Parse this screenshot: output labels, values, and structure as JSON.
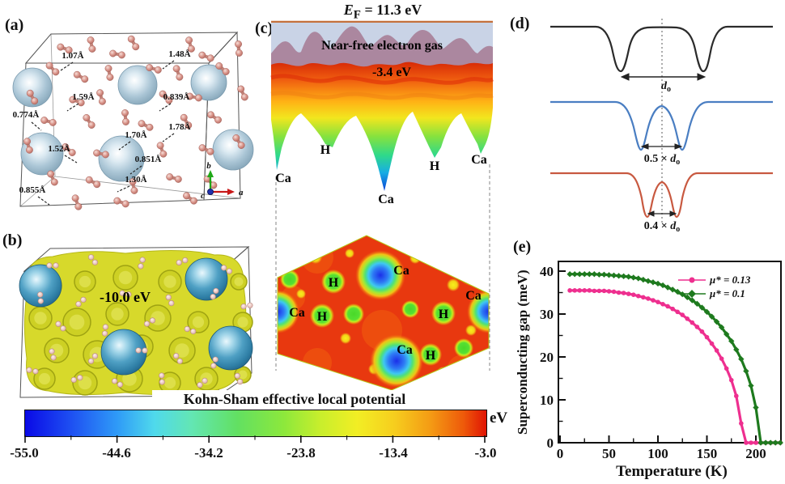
{
  "panels": {
    "a": "(a)",
    "b": "(b)",
    "c": "(c)",
    "d": "(d)",
    "e": "(e)"
  },
  "panel_a": {
    "bond_labels": [
      "1.07Å",
      "1.48Å",
      "1.59Å",
      "0.839Å",
      "0.774Å",
      "1.78Å",
      "1.52Å",
      "1.70Å",
      "0.851Å",
      "1.30Å",
      "0.855Å"
    ],
    "axis_a": "a",
    "axis_b": "b",
    "axis_c": "c"
  },
  "panel_b": {
    "isosurface_label": "-10.0 eV"
  },
  "panel_c": {
    "fermi_symbol": "E",
    "fermi_sub": "F",
    "fermi_value": " = 11.3 eV",
    "nfe_label": "Near-free electron gas",
    "level_label": "-3.4 eV",
    "surface_labels": [
      "Ca",
      "H",
      "Ca",
      "H",
      "Ca"
    ],
    "map_labels": [
      "Ca",
      "H",
      "Ca",
      "H",
      "H",
      "Ca",
      "Ca",
      "H"
    ]
  },
  "panel_d": {
    "wells": [
      {
        "mult": "",
        "sym": "d",
        "sub": "o"
      },
      {
        "mult": "0.5 × ",
        "sym": "d",
        "sub": "o"
      },
      {
        "mult": "0.4 × ",
        "sym": "d",
        "sub": "o"
      }
    ]
  },
  "colorbar": {
    "title": "Kohn-Sham effective local potential",
    "unit": "eV",
    "tick_labels": [
      "-55.0",
      "-44.6",
      "-34.2",
      "-23.8",
      "-13.4",
      "-3.0"
    ]
  },
  "chart_data": {
    "type": "line",
    "xlabel": "Temperature (K)",
    "ylabel": "Superconducting gap (meV)",
    "xlim": [
      0,
      225
    ],
    "ylim": [
      0,
      40
    ],
    "xticks": [
      0,
      50,
      100,
      150,
      200
    ],
    "yticks": [
      0,
      10,
      20,
      30,
      40
    ],
    "legend_position": "top-right",
    "series": [
      {
        "name": "μ* = 0.13",
        "color": "#ee2f8f",
        "marker": "circle",
        "x": [
          10,
          15,
          20,
          25,
          30,
          35,
          40,
          45,
          50,
          55,
          60,
          65,
          70,
          75,
          80,
          85,
          90,
          95,
          100,
          105,
          110,
          115,
          120,
          125,
          130,
          135,
          140,
          145,
          150,
          155,
          160,
          165,
          170,
          175,
          180,
          185,
          190,
          195,
          200,
          205,
          210,
          215,
          220,
          225
        ],
        "y": [
          35.5,
          35.5,
          35.5,
          35.5,
          35.5,
          35.4,
          35.4,
          35.4,
          35.3,
          35.2,
          35.0,
          34.9,
          34.7,
          34.5,
          34.2,
          33.9,
          33.6,
          33.2,
          32.8,
          32.3,
          31.8,
          31.2,
          30.5,
          29.8,
          28.9,
          28.0,
          27.0,
          25.9,
          24.6,
          23.1,
          21.5,
          19.6,
          17.3,
          14.6,
          10.9,
          4.5,
          0,
          0,
          0,
          0,
          0,
          0,
          0,
          0
        ]
      },
      {
        "name": "μ* = 0.1",
        "color": "#1e7a1e",
        "marker": "diamond",
        "x": [
          10,
          15,
          20,
          25,
          30,
          35,
          40,
          45,
          50,
          55,
          60,
          65,
          70,
          75,
          80,
          85,
          90,
          95,
          100,
          105,
          110,
          115,
          120,
          125,
          130,
          135,
          140,
          145,
          150,
          155,
          160,
          165,
          170,
          175,
          180,
          185,
          190,
          195,
          200,
          205,
          210,
          215,
          220,
          225
        ],
        "y": [
          39.3,
          39.3,
          39.3,
          39.3,
          39.3,
          39.3,
          39.2,
          39.2,
          39.1,
          39.0,
          38.9,
          38.8,
          38.7,
          38.5,
          38.3,
          38.0,
          37.7,
          37.4,
          37.1,
          36.7,
          36.2,
          35.7,
          35.2,
          34.6,
          33.9,
          33.2,
          32.4,
          31.5,
          30.5,
          29.4,
          28.2,
          26.9,
          25.3,
          23.7,
          21.7,
          19.5,
          16.7,
          13.3,
          8.2,
          0,
          0,
          0,
          0,
          0
        ]
      }
    ]
  }
}
